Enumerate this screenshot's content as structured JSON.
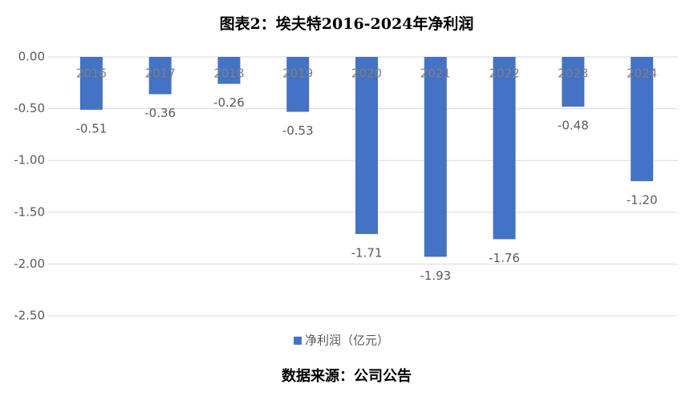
{
  "chart_data": {
    "type": "bar",
    "title": "图表2：埃夫特2016-2024年净利润",
    "categories": [
      "2016",
      "2017",
      "2018",
      "2019",
      "2020",
      "2021",
      "2022",
      "2023",
      "2024"
    ],
    "series": [
      {
        "name": "净利润（亿元）",
        "color": "#4472c4",
        "values": [
          -0.51,
          -0.36,
          -0.26,
          -0.53,
          -1.71,
          -1.93,
          -1.76,
          -0.48,
          -1.2
        ],
        "value_labels": [
          "-0.51",
          "-0.36",
          "-0.26",
          "-0.53",
          "-1.71",
          "-1.93",
          "-1.76",
          "-0.48",
          "-1.20"
        ]
      }
    ],
    "ylim": [
      -2.5,
      0
    ],
    "yticks": [
      {
        "value": 0,
        "label": "0.00"
      },
      {
        "value": -0.5,
        "label": "-0.50"
      },
      {
        "value": -1,
        "label": "-1.00"
      },
      {
        "value": -1.5,
        "label": "-1.50"
      },
      {
        "value": -2,
        "label": "-2.00"
      },
      {
        "value": -2.5,
        "label": "-2.50"
      }
    ],
    "grid": true,
    "legend": "bottom",
    "source": "数据来源：公司公告"
  }
}
